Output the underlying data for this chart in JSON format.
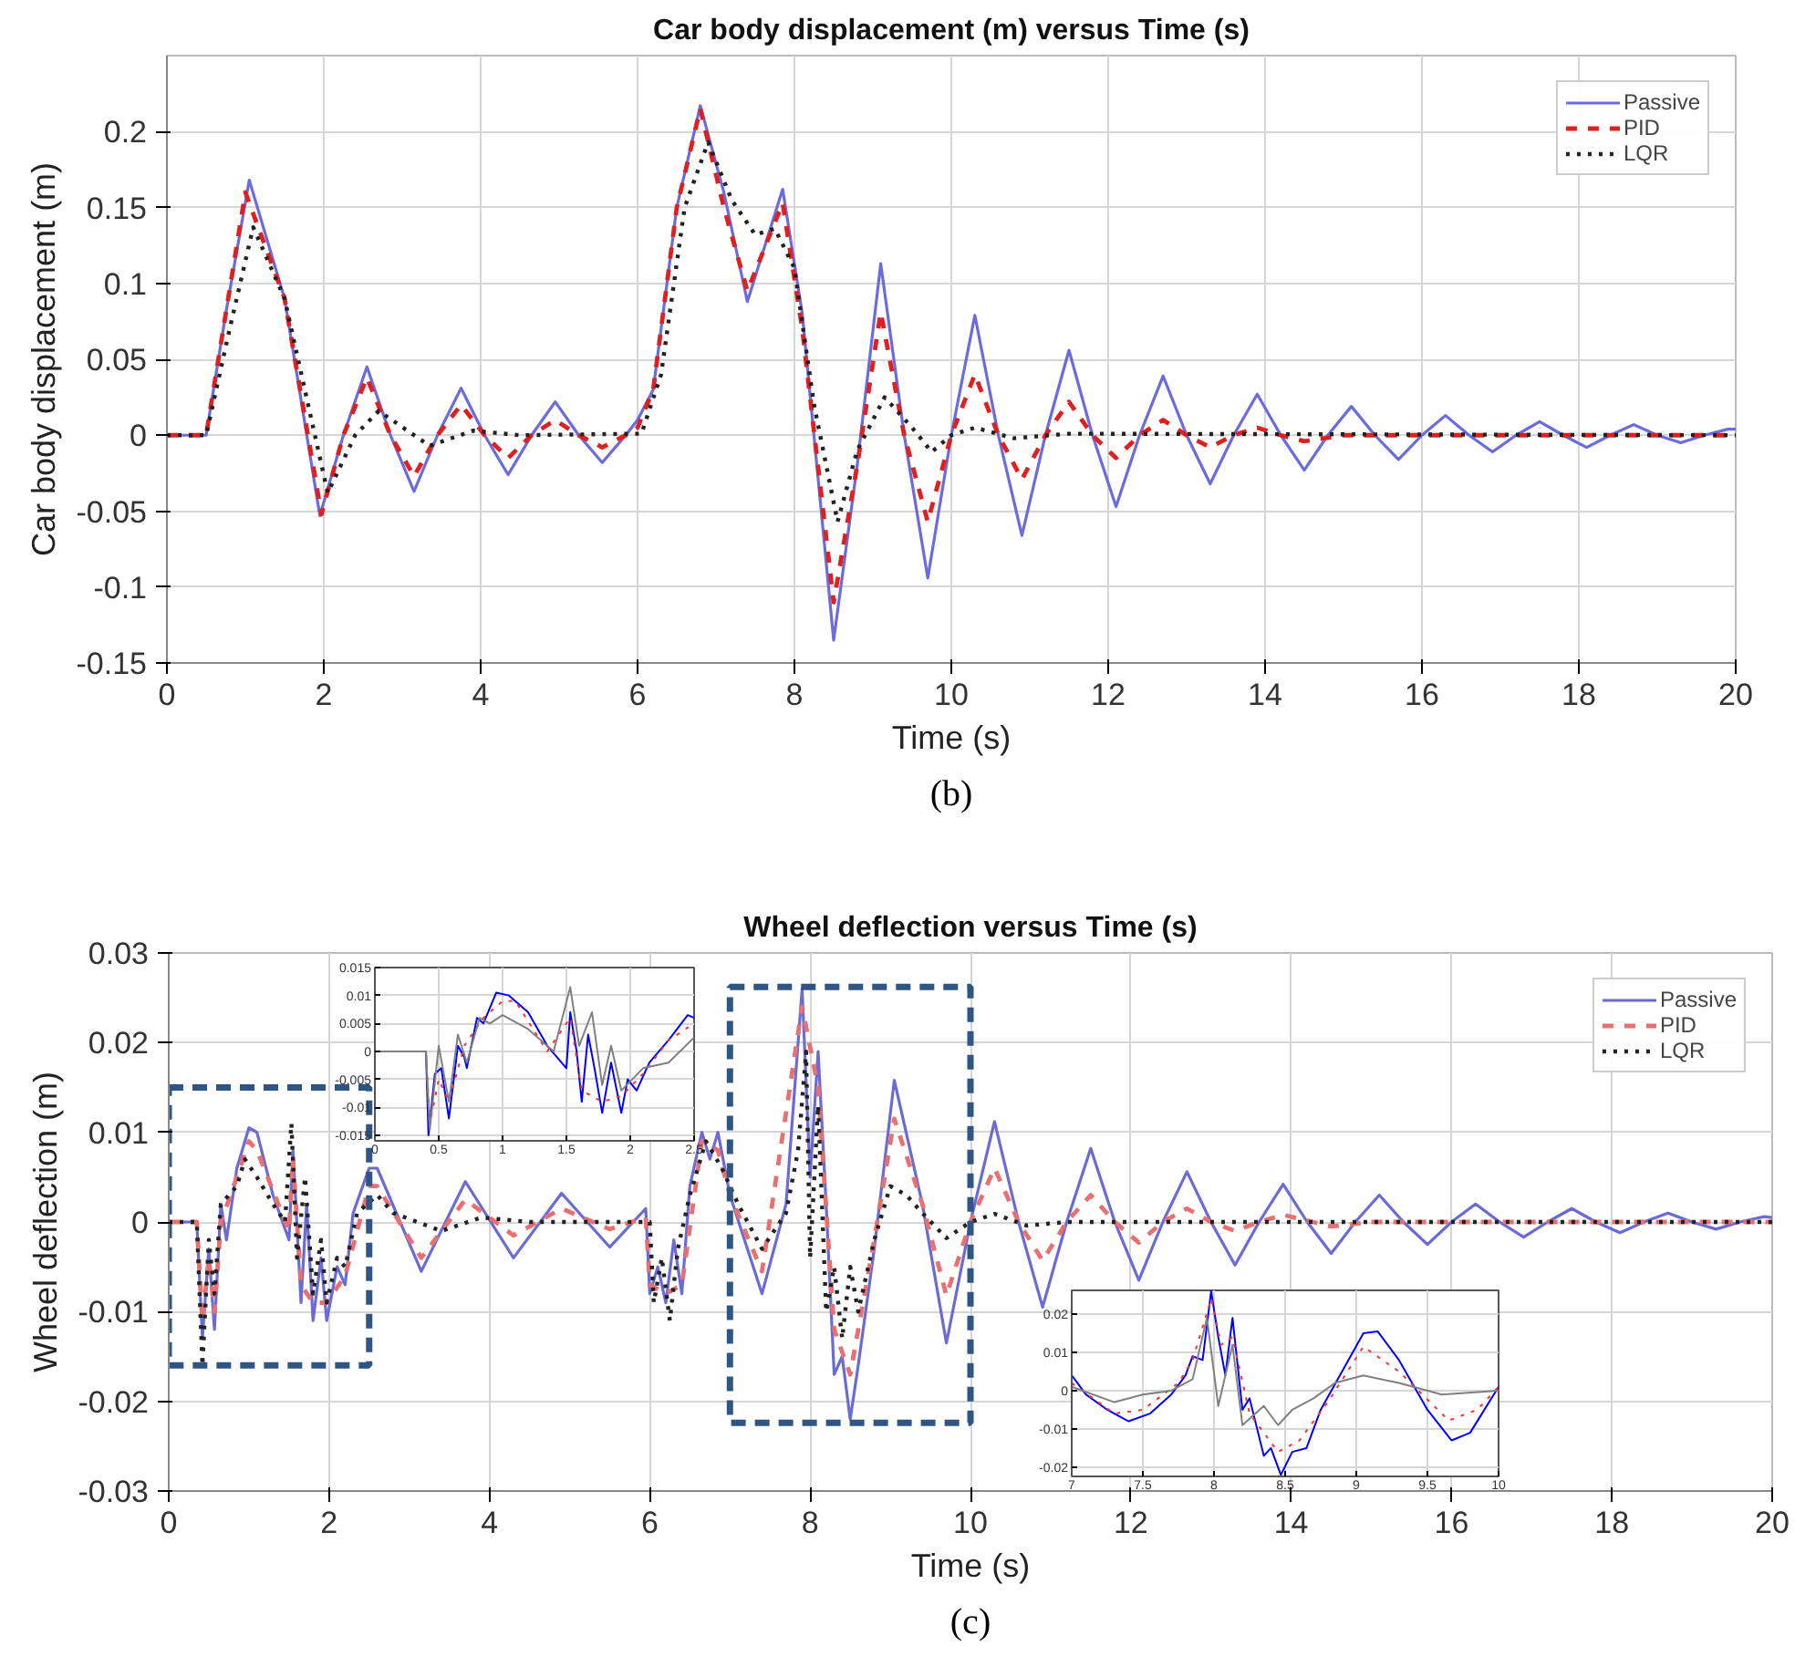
{
  "chart_data": [
    {
      "type": "line",
      "title": "Car body displacement (m) versus Time (s)",
      "xlabel": "Time (s)",
      "ylabel": "Car body displacement (m)",
      "annotations": [
        "(b)"
      ],
      "xlim": [
        0,
        20
      ],
      "ylim": [
        -0.15,
        0.25
      ],
      "xticks": [
        0,
        2,
        4,
        6,
        8,
        10,
        12,
        14,
        16,
        18,
        20
      ],
      "yticks": [
        -0.15,
        -0.1,
        -0.05,
        0,
        0.05,
        0.1,
        0.15,
        0.2
      ],
      "grid": true,
      "legend": "top right",
      "series": [
        {
          "name": "Passive",
          "color": "#6b6be0",
          "line_style": "solid",
          "x": [
            0,
            0.5,
            0.75,
            1.05,
            1.5,
            1.95,
            2.25,
            2.55,
            2.85,
            3.15,
            3.45,
            3.75,
            4.05,
            4.35,
            4.65,
            4.95,
            5.25,
            5.55,
            5.85,
            6.0,
            6.2,
            6.5,
            6.8,
            7.1,
            7.4,
            7.85,
            8.1,
            8.5,
            8.8,
            9.1,
            9.4,
            9.7,
            10.0,
            10.3,
            10.6,
            10.9,
            11.2,
            11.5,
            11.8,
            12.1,
            12.4,
            12.7,
            13.0,
            13.3,
            13.6,
            13.9,
            14.2,
            14.5,
            14.8,
            15.1,
            15.4,
            15.7,
            16.0,
            16.3,
            16.6,
            16.9,
            17.2,
            17.5,
            17.8,
            18.1,
            18.4,
            18.7,
            19.0,
            19.3,
            19.6,
            19.9,
            20
          ],
          "values": [
            0,
            0,
            0.08,
            0.168,
            0.09,
            -0.053,
            0.0,
            0.045,
            0.0,
            -0.037,
            0.0,
            0.031,
            0.0,
            -0.026,
            0.0,
            0.022,
            0.0,
            -0.018,
            0.0,
            0.01,
            0.03,
            0.15,
            0.217,
            0.16,
            0.088,
            0.162,
            0.08,
            -0.135,
            -0.02,
            0.113,
            0.0,
            -0.094,
            0.0,
            0.079,
            0.0,
            -0.066,
            0.0,
            0.056,
            0.0,
            -0.047,
            0.0,
            0.039,
            0.0,
            -0.032,
            0.0,
            0.027,
            0.0,
            -0.023,
            0.0,
            0.019,
            0.0,
            -0.016,
            0.0,
            0.013,
            0.0,
            -0.011,
            0.0,
            0.009,
            0.0,
            -0.008,
            0.0,
            0.007,
            0.0,
            -0.005,
            0.0,
            0.004,
            0.004
          ]
        },
        {
          "name": "PID",
          "color": "#e02020",
          "line_style": "dashed",
          "x": [
            0,
            0.5,
            0.75,
            1.0,
            1.5,
            1.97,
            2.25,
            2.55,
            2.85,
            3.15,
            3.45,
            3.75,
            4.05,
            4.35,
            4.65,
            4.95,
            5.25,
            5.55,
            5.85,
            6.0,
            6.2,
            6.5,
            6.8,
            7.1,
            7.4,
            7.85,
            8.1,
            8.5,
            8.8,
            9.1,
            9.4,
            9.7,
            10.0,
            10.3,
            10.6,
            10.9,
            11.2,
            11.5,
            11.8,
            12.1,
            12.4,
            12.7,
            13.0,
            13.3,
            13.6,
            13.9,
            14.2,
            14.5,
            15.0,
            20
          ],
          "values": [
            0,
            0,
            0.08,
            0.16,
            0.09,
            -0.052,
            0.0,
            0.038,
            0.0,
            -0.027,
            0.0,
            0.02,
            0.0,
            -0.015,
            0.0,
            0.01,
            0.0,
            -0.008,
            0.0,
            0.005,
            0.03,
            0.15,
            0.215,
            0.15,
            0.095,
            0.153,
            0.07,
            -0.11,
            -0.02,
            0.081,
            0.0,
            -0.057,
            0.0,
            0.04,
            0.0,
            -0.029,
            0.0,
            0.022,
            0.0,
            -0.015,
            0.0,
            0.01,
            0.0,
            -0.008,
            0.0,
            0.005,
            0.0,
            -0.004,
            0.0,
            0.0
          ]
        },
        {
          "name": "LQR",
          "color": "#222222",
          "line_style": "dotted",
          "x": [
            0,
            0.5,
            0.8,
            1.1,
            1.5,
            2.05,
            2.4,
            2.7,
            3.35,
            3.9,
            4.5,
            6.05,
            6.3,
            6.6,
            6.9,
            7.2,
            7.5,
            7.75,
            8.0,
            8.25,
            8.55,
            8.8,
            9.15,
            9.5,
            9.75,
            10.0,
            10.3,
            10.8,
            11.5,
            20
          ],
          "values": [
            0,
            0,
            0.07,
            0.137,
            0.09,
            -0.038,
            0.0,
            0.016,
            -0.007,
            0.003,
            0.0,
            0.001,
            0.04,
            0.15,
            0.193,
            0.155,
            0.132,
            0.136,
            0.11,
            0.02,
            -0.057,
            -0.01,
            0.025,
            0.005,
            -0.011,
            0.0,
            0.005,
            -0.002,
            0.001,
            0.0
          ]
        }
      ]
    },
    {
      "type": "line",
      "title": "Wheel deflection versus Time (s)",
      "xlabel": "Time (s)",
      "ylabel": "Wheel deflection (m)",
      "annotations": [
        "(c)"
      ],
      "xlim": [
        0,
        20
      ],
      "ylim": [
        -0.03,
        0.03
      ],
      "xticks": [
        0,
        2,
        4,
        6,
        8,
        10,
        12,
        14,
        16,
        18,
        20
      ],
      "yticks": [
        -0.03,
        -0.02,
        -0.01,
        0,
        0.01,
        0.02,
        0.03
      ],
      "grid": true,
      "legend": "top right",
      "series": [
        {
          "name": "Passive",
          "color": "#6b6bd8",
          "line_style": "solid",
          "x": [
            0,
            0.35,
            0.42,
            0.5,
            0.57,
            0.65,
            0.72,
            0.85,
            1.0,
            1.1,
            1.3,
            1.5,
            1.55,
            1.65,
            1.72,
            1.8,
            1.9,
            1.97,
            2.1,
            2.2,
            2.3,
            2.5,
            2.6,
            3.15,
            3.7,
            4.3,
            4.9,
            5.5,
            5.95,
            6.0,
            6.1,
            6.2,
            6.3,
            6.4,
            6.5,
            6.65,
            6.75,
            6.85,
            7.0,
            7.4,
            7.7,
            7.9,
            8.0,
            8.1,
            8.2,
            8.3,
            8.4,
            8.5,
            8.6,
            8.8,
            9.05,
            9.4,
            9.7,
            10.0,
            10.3,
            10.6,
            10.9,
            11.2,
            11.5,
            11.8,
            12.1,
            12.4,
            12.7,
            13.0,
            13.3,
            13.6,
            13.9,
            14.2,
            14.5,
            14.8,
            15.1,
            15.4,
            15.7,
            16.0,
            16.3,
            16.6,
            16.9,
            17.2,
            17.5,
            17.8,
            18.1,
            18.4,
            18.7,
            19.0,
            19.3,
            19.6,
            19.9,
            20
          ],
          "values": [
            0,
            0,
            -0.013,
            -0.003,
            -0.012,
            0.002,
            -0.002,
            0.006,
            0.0105,
            0.01,
            0.003,
            -0.002,
            0.008,
            -0.009,
            0.002,
            -0.011,
            -0.004,
            -0.011,
            -0.005,
            -0.007,
            0.001,
            0.006,
            0.006,
            -0.0055,
            0.0045,
            -0.004,
            0.0032,
            -0.0028,
            0.0015,
            -0.008,
            -0.005,
            -0.009,
            -0.002,
            -0.008,
            0.004,
            0.01,
            0.007,
            0.01,
            0.003,
            -0.008,
            0.002,
            0.026,
            0.005,
            0.019,
            0.002,
            -0.017,
            -0.015,
            -0.022,
            -0.016,
            -0.003,
            0.0158,
            0.002,
            -0.0135,
            0.0,
            0.0112,
            0.0,
            -0.0095,
            0.0,
            0.0082,
            0.0,
            -0.0065,
            0.0,
            0.0056,
            0.0,
            -0.0048,
            0.0,
            0.0042,
            0.0,
            -0.0035,
            0.0,
            0.003,
            0.0,
            -0.0025,
            0.0,
            0.002,
            0.0,
            -0.0017,
            0.0,
            0.0015,
            0.0,
            -0.0012,
            0.0,
            0.001,
            0.0,
            -0.0008,
            0.0,
            0.0006,
            0.0005
          ]
        },
        {
          "name": "PID",
          "color": "#e87070",
          "line_style": "dashed",
          "x": [
            0,
            0.35,
            0.42,
            0.5,
            0.57,
            0.65,
            0.85,
            1.0,
            1.1,
            1.5,
            1.55,
            1.65,
            1.8,
            1.97,
            2.2,
            2.5,
            2.6,
            3.15,
            3.7,
            4.3,
            4.9,
            5.5,
            5.95,
            6.0,
            6.2,
            6.4,
            6.65,
            6.85,
            7.0,
            7.4,
            7.9,
            8.1,
            8.3,
            8.5,
            8.8,
            9.05,
            9.4,
            9.7,
            10.0,
            10.3,
            10.6,
            10.9,
            11.2,
            11.5,
            11.8,
            12.1,
            12.4,
            12.7,
            13.0,
            13.3,
            13.6,
            13.9,
            14.5,
            15.0,
            20
          ],
          "values": [
            0,
            0,
            -0.011,
            -0.004,
            -0.01,
            0.0,
            0.005,
            0.009,
            0.008,
            -0.001,
            0.007,
            -0.007,
            -0.009,
            -0.009,
            -0.006,
            0.004,
            0.004,
            -0.004,
            0.0025,
            -0.0015,
            0.0015,
            -0.0008,
            0.0005,
            -0.007,
            -0.008,
            -0.007,
            0.009,
            0.008,
            0.003,
            -0.0055,
            0.024,
            0.015,
            -0.012,
            -0.017,
            -0.002,
            0.0115,
            0.002,
            -0.0082,
            0.0,
            0.006,
            0.0,
            -0.0043,
            0.0,
            0.003,
            0.0,
            -0.0023,
            0.0,
            0.0015,
            0.0,
            -0.001,
            0.0,
            0.0008,
            -0.0005,
            0.0,
            0.0
          ]
        },
        {
          "name": "LQR",
          "color": "#222222",
          "line_style": "dotted",
          "x": [
            0,
            0.35,
            0.42,
            0.5,
            0.57,
            0.65,
            0.85,
            0.95,
            1.1,
            1.3,
            1.45,
            1.53,
            1.6,
            1.7,
            1.8,
            1.9,
            1.97,
            2.1,
            2.2,
            2.35,
            2.6,
            2.8,
            3.4,
            3.9,
            4.5,
            6.0,
            6.05,
            6.15,
            6.25,
            6.35,
            6.5,
            6.7,
            6.9,
            7.1,
            7.4,
            7.7,
            7.85,
            7.95,
            8.0,
            8.1,
            8.2,
            8.3,
            8.4,
            8.5,
            8.6,
            8.8,
            9.0,
            9.2,
            9.4,
            9.7,
            10.0,
            10.3,
            10.7,
            11.2,
            20
          ],
          "values": [
            0,
            0,
            -0.016,
            -0.002,
            -0.008,
            0.002,
            0.004,
            0.007,
            0.005,
            0.002,
            0.0,
            0.011,
            -0.004,
            0.005,
            -0.008,
            -0.002,
            -0.009,
            -0.004,
            -0.005,
            0.001,
            0.003,
            0.001,
            -0.001,
            0.0005,
            0.0,
            0.0,
            -0.009,
            -0.004,
            -0.011,
            -0.003,
            0.003,
            0.009,
            0.006,
            0.002,
            -0.003,
            0.001,
            0.008,
            0.019,
            -0.004,
            0.013,
            -0.01,
            -0.005,
            -0.013,
            -0.005,
            -0.01,
            -0.002,
            0.004,
            0.003,
            0.001,
            -0.0018,
            0.0,
            0.0009,
            -0.0004,
            0.0,
            0.0
          ]
        }
      ]
    },
    {
      "type": "line",
      "xlim": [
        0,
        2.5
      ],
      "ylim": [
        -0.016,
        0.015
      ],
      "xticks": [
        0,
        0.5,
        1,
        1.5,
        2,
        2.5
      ],
      "yticks": [
        -0.015,
        -0.01,
        -0.005,
        0,
        0.005,
        0.01,
        0.015
      ],
      "grid": true,
      "series": [
        {
          "color": "#0000ff",
          "line_style": "solid",
          "x": [
            0,
            0.4,
            0.42,
            0.47,
            0.52,
            0.58,
            0.65,
            0.7,
            0.72,
            0.8,
            0.85,
            0.95,
            1.05,
            1.2,
            1.35,
            1.5,
            1.53,
            1.58,
            1.62,
            1.67,
            1.72,
            1.78,
            1.85,
            1.93,
            1.98,
            2.05,
            2.15,
            2.3,
            2.45,
            2.5
          ],
          "values": [
            0,
            0,
            -0.015,
            -0.004,
            -0.003,
            -0.012,
            0.001,
            -0.001,
            -0.003,
            0.006,
            0.005,
            0.0105,
            0.01,
            0.007,
            0.001,
            -0.003,
            0.007,
            0.0,
            -0.009,
            0.003,
            -0.003,
            -0.011,
            -0.002,
            -0.011,
            -0.005,
            -0.007,
            -0.002,
            0.002,
            0.0065,
            0.006
          ]
        },
        {
          "color": "#ff3030",
          "line_style": "dotted",
          "x": [
            0,
            0.4,
            0.43,
            0.5,
            0.58,
            0.7,
            0.85,
            1.0,
            1.1,
            1.35,
            1.53,
            1.62,
            1.78,
            1.93,
            2.1,
            2.3,
            2.5
          ],
          "values": [
            0,
            0,
            -0.013,
            -0.005,
            -0.009,
            0.001,
            0.006,
            0.009,
            0.009,
            0.0,
            0.006,
            -0.007,
            -0.009,
            -0.008,
            -0.004,
            0.002,
            0.005
          ]
        },
        {
          "color": "#808080",
          "line_style": "solid",
          "x": [
            0,
            0.4,
            0.43,
            0.5,
            0.58,
            0.65,
            0.72,
            0.82,
            0.9,
            1.0,
            1.2,
            1.4,
            1.53,
            1.6,
            1.7,
            1.78,
            1.85,
            1.93,
            2.1,
            2.3,
            2.5
          ],
          "values": [
            0,
            0,
            -0.014,
            0.001,
            -0.009,
            0.003,
            -0.002,
            0.006,
            0.005,
            0.0065,
            0.004,
            0.0,
            0.0115,
            0.001,
            0.007,
            -0.006,
            0.001,
            -0.007,
            -0.003,
            -0.002,
            0.0025
          ]
        }
      ]
    },
    {
      "type": "line",
      "xlim": [
        7,
        10
      ],
      "ylim": [
        -0.0224,
        0.0262
      ],
      "xticks": [
        7,
        7.5,
        8,
        8.5,
        9,
        9.5,
        10
      ],
      "yticks": [
        -0.02,
        -0.01,
        0,
        0.01,
        0.02
      ],
      "grid": true,
      "series": [
        {
          "color": "#0000ff",
          "line_style": "solid",
          "x": [
            7,
            7.1,
            7.25,
            7.4,
            7.55,
            7.7,
            7.8,
            7.85,
            7.92,
            7.98,
            8.03,
            8.08,
            8.13,
            8.2,
            8.25,
            8.35,
            8.4,
            8.47,
            8.55,
            8.65,
            8.75,
            8.9,
            9.05,
            9.15,
            9.3,
            9.5,
            9.67,
            9.8,
            10
          ],
          "values": [
            0.004,
            -0.001,
            -0.005,
            -0.008,
            -0.006,
            -0.001,
            0.004,
            0.009,
            0.008,
            0.026,
            0.014,
            0.004,
            0.019,
            -0.005,
            -0.002,
            -0.017,
            -0.015,
            -0.022,
            -0.016,
            -0.015,
            -0.005,
            0.005,
            0.015,
            0.0155,
            0.008,
            -0.005,
            -0.013,
            -0.011,
            0.001
          ]
        },
        {
          "color": "#ff3030",
          "line_style": "dotted",
          "x": [
            7,
            7.3,
            7.5,
            7.75,
            7.85,
            7.98,
            8.05,
            8.13,
            8.25,
            8.45,
            8.6,
            8.8,
            9.05,
            9.3,
            9.65,
            9.85,
            10
          ],
          "values": [
            0.002,
            -0.006,
            -0.005,
            0.002,
            0.008,
            0.024,
            0.012,
            0.014,
            -0.006,
            -0.016,
            -0.013,
            -0.003,
            0.0115,
            0.005,
            -0.0078,
            -0.005,
            0.001
          ]
        },
        {
          "color": "#808080",
          "line_style": "solid",
          "x": [
            7,
            7.3,
            7.5,
            7.7,
            7.85,
            7.95,
            8.03,
            8.13,
            8.2,
            8.35,
            8.45,
            8.55,
            8.7,
            8.85,
            9.05,
            9.3,
            9.6,
            10
          ],
          "values": [
            0.001,
            -0.003,
            -0.001,
            0.0,
            0.003,
            0.019,
            -0.004,
            0.012,
            -0.009,
            -0.004,
            -0.009,
            -0.005,
            -0.002,
            0.002,
            0.004,
            0.002,
            -0.001,
            0.0
          ]
        }
      ]
    }
  ]
}
